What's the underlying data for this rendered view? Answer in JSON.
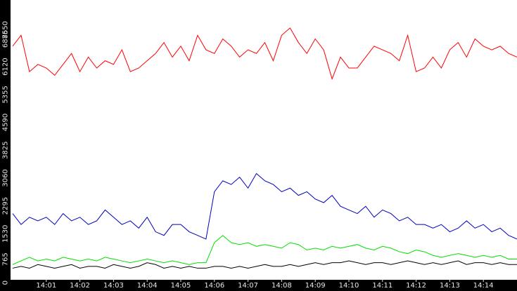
{
  "chart_data": {
    "type": "line",
    "x": [
      0,
      0.25,
      0.5,
      0.75,
      1,
      1.25,
      1.5,
      1.75,
      2,
      2.25,
      2.5,
      2.75,
      3,
      3.25,
      3.5,
      3.75,
      4,
      4.25,
      4.5,
      4.75,
      5,
      5.25,
      5.5,
      5.75,
      6,
      6.25,
      6.5,
      6.75,
      7,
      7.25,
      7.5,
      7.75,
      8,
      8.25,
      8.5,
      8.75,
      9,
      9.25,
      9.5,
      9.75,
      10,
      10.25,
      10.5,
      10.75,
      11,
      11.25,
      11.5,
      11.75,
      12,
      12.25,
      12.5,
      12.75,
      13,
      13.25,
      13.5,
      13.75,
      14,
      14.25,
      14.5,
      14.75,
      15
    ],
    "series": [
      {
        "color": "#ff0000",
        "values": [
          6400,
          6700,
          5700,
          5900,
          5800,
          5600,
          5900,
          6200,
          5700,
          6100,
          5800,
          6000,
          5900,
          6300,
          5700,
          5800,
          6000,
          6200,
          6500,
          6100,
          6400,
          6000,
          6700,
          6300,
          6200,
          6600,
          6400,
          6100,
          6300,
          6200,
          6500,
          6000,
          6700,
          6900,
          6500,
          6200,
          6600,
          6300,
          5500,
          6100,
          5800,
          5800,
          6100,
          6400,
          6300,
          6200,
          6000,
          6700,
          5700,
          5800,
          6100,
          5800,
          6300,
          6500,
          6100,
          6600,
          6400,
          6300,
          6400,
          6200,
          6100
        ]
      },
      {
        "color": "#0000c0",
        "values": [
          1800,
          1500,
          1700,
          1600,
          1700,
          1500,
          1800,
          1600,
          1700,
          1500,
          1600,
          1900,
          1700,
          1500,
          1600,
          1400,
          1700,
          1300,
          1200,
          1500,
          1500,
          1300,
          1200,
          1100,
          2400,
          2700,
          2600,
          2800,
          2500,
          2900,
          2700,
          2600,
          2400,
          2500,
          2300,
          2400,
          2200,
          2100,
          2300,
          2000,
          1900,
          1800,
          2000,
          1700,
          1900,
          1800,
          1600,
          1700,
          1500,
          1500,
          1400,
          1500,
          1300,
          1400,
          1600,
          1400,
          1500,
          1300,
          1400,
          1200,
          1100
        ]
      },
      {
        "color": "#00e000",
        "values": [
          400,
          500,
          600,
          500,
          550,
          500,
          600,
          550,
          500,
          550,
          500,
          600,
          550,
          500,
          450,
          500,
          550,
          500,
          450,
          500,
          450,
          400,
          450,
          450,
          1000,
          1200,
          1000,
          950,
          1000,
          900,
          950,
          900,
          850,
          1000,
          950,
          800,
          850,
          800,
          900,
          850,
          900,
          950,
          850,
          800,
          900,
          850,
          750,
          700,
          800,
          750,
          650,
          600,
          650,
          700,
          650,
          600,
          650,
          600,
          650,
          550,
          550
        ]
      },
      {
        "color": "#000000",
        "values": [
          300,
          350,
          300,
          400,
          350,
          300,
          350,
          400,
          300,
          350,
          350,
          300,
          400,
          350,
          300,
          350,
          450,
          400,
          300,
          350,
          300,
          350,
          300,
          300,
          350,
          350,
          300,
          350,
          300,
          350,
          400,
          350,
          350,
          400,
          350,
          400,
          450,
          400,
          450,
          450,
          500,
          450,
          400,
          450,
          450,
          400,
          450,
          500,
          450,
          400,
          450,
          400,
          450,
          500,
          400,
          450,
          450,
          400,
          450,
          400,
          400
        ]
      }
    ],
    "xlim": [
      0,
      15
    ],
    "xticks": [
      {
        "value": 1,
        "label": "14:01"
      },
      {
        "value": 2,
        "label": "14:02"
      },
      {
        "value": 3,
        "label": "14:03"
      },
      {
        "value": 4,
        "label": "14:04"
      },
      {
        "value": 5,
        "label": "14:05"
      },
      {
        "value": 6,
        "label": "14:06"
      },
      {
        "value": 7,
        "label": "14:07"
      },
      {
        "value": 8,
        "label": "14:08"
      },
      {
        "value": 9,
        "label": "14:09"
      },
      {
        "value": 10,
        "label": "14:10"
      },
      {
        "value": 11,
        "label": "14:11"
      },
      {
        "value": 12,
        "label": "14:12"
      },
      {
        "value": 13,
        "label": "14:13"
      },
      {
        "value": 14,
        "label": "14:14"
      }
    ],
    "ylim": [
      0,
      7650
    ],
    "yticks": [
      0,
      765,
      1530,
      2295,
      3060,
      3825,
      4590,
      5355,
      6120,
      6885,
      7650
    ]
  }
}
